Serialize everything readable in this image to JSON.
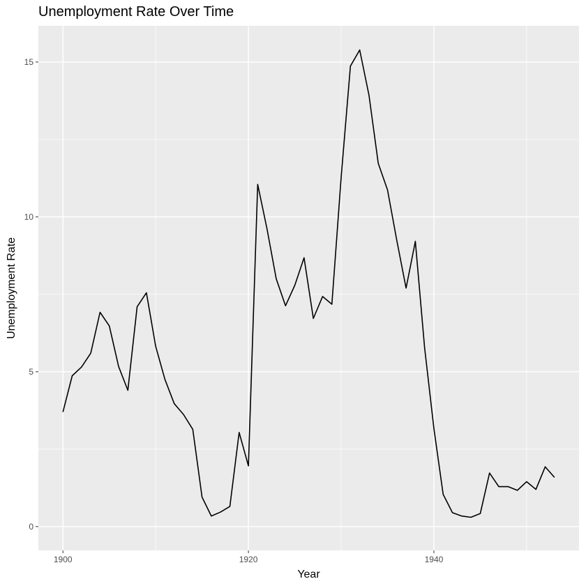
{
  "chart_data": {
    "type": "line",
    "title": "Unemployment Rate Over Time",
    "xlabel": "Year",
    "ylabel": "Unemployment Rate",
    "xlim": [
      1897.35,
      1955.65
    ],
    "ylim": [
      -0.77,
      16.17
    ],
    "x_ticks": [
      1900,
      1920,
      1940
    ],
    "x_minor_ticks": [
      1910,
      1930,
      1950
    ],
    "y_ticks": [
      0,
      5,
      10,
      15
    ],
    "y_minor_ticks": [
      2.5,
      7.5,
      12.5
    ],
    "grid": true,
    "legend": "none",
    "colors": {
      "panel": "#ebebeb",
      "grid": "#ffffff",
      "line": "#000000",
      "tick_text": "#4d4d4d",
      "tick": "#333333"
    },
    "series": [
      {
        "x": [
          1900,
          1901,
          1902,
          1903,
          1904,
          1905,
          1906,
          1907,
          1908,
          1909,
          1910,
          1911,
          1912,
          1913,
          1914,
          1915,
          1916,
          1917,
          1918,
          1919,
          1920,
          1921,
          1922,
          1923,
          1924,
          1925,
          1926,
          1927,
          1928,
          1929,
          1930,
          1931,
          1932,
          1933,
          1934,
          1935,
          1936,
          1937,
          1938,
          1939,
          1940,
          1941,
          1942,
          1943,
          1944,
          1945,
          1946,
          1947,
          1948,
          1949,
          1950,
          1951,
          1952,
          1953
        ],
        "values": [
          3.7,
          4.87,
          5.15,
          5.6,
          6.92,
          6.48,
          5.17,
          4.4,
          7.1,
          7.55,
          5.82,
          4.75,
          3.97,
          3.62,
          3.14,
          0.95,
          0.34,
          0.47,
          0.65,
          3.04,
          1.96,
          11.05,
          9.62,
          8.0,
          7.13,
          7.79,
          8.68,
          6.72,
          7.43,
          7.18,
          11.28,
          14.87,
          15.39,
          13.93,
          11.73,
          10.87,
          9.24,
          7.7,
          9.21,
          5.77,
          3.17,
          1.04,
          0.45,
          0.34,
          0.3,
          0.42,
          1.73,
          1.29,
          1.29,
          1.17,
          1.45,
          1.2,
          1.93,
          1.59
        ]
      }
    ]
  }
}
